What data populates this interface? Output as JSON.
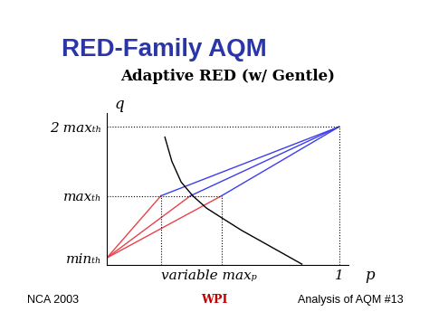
{
  "slide": {
    "title": "RED-Family AQM",
    "footer": {
      "left": "NCA 2003",
      "center": "WPI",
      "right": "Analysis of AQM #13"
    }
  },
  "chart_data": {
    "type": "line",
    "title": "Adaptive RED (w/ Gentle)",
    "x_label": "p",
    "y_label": "q",
    "xlim": [
      0,
      1.04
    ],
    "ylim": [
      0,
      22
    ],
    "xticks": [
      {
        "value": 0.233,
        "label": "variable maxₚ"
      },
      1
    ],
    "yticks": [
      {
        "value": 1,
        "label": "minₜₕ"
      },
      {
        "value": 10,
        "label": "maxₜₕ"
      },
      {
        "value": 20,
        "label": "2 maxₜₕ"
      }
    ],
    "series": [
      {
        "type": "line",
        "color": "#e8424a",
        "x": [
          0,
          0.233
        ],
        "values": [
          1,
          10
        ]
      },
      {
        "type": "line",
        "color": "#e8424a",
        "x": [
          0,
          0.36
        ],
        "values": [
          1,
          10
        ]
      },
      {
        "type": "line",
        "color": "#e8424a",
        "x": [
          0,
          0.494
        ],
        "values": [
          1,
          10
        ]
      },
      {
        "type": "line",
        "color": "#3c3cf0",
        "x": [
          0.233,
          1
        ],
        "values": [
          10,
          20
        ]
      },
      {
        "type": "line",
        "color": "#3c3cf0",
        "x": [
          0.36,
          1
        ],
        "values": [
          10,
          20
        ]
      },
      {
        "type": "line",
        "color": "#3c3cf0",
        "x": [
          0.494,
          1
        ],
        "values": [
          10,
          20
        ]
      },
      {
        "type": "line",
        "color": "#000000",
        "x": [
          0.25,
          0.28,
          0.32,
          0.37,
          0.43,
          0.5,
          0.58,
          0.66,
          0.75,
          0.84
        ],
        "values": [
          18.5,
          15,
          12,
          10,
          8.2,
          6.7,
          5,
          3.5,
          1.8,
          0.1
        ]
      }
    ]
  }
}
